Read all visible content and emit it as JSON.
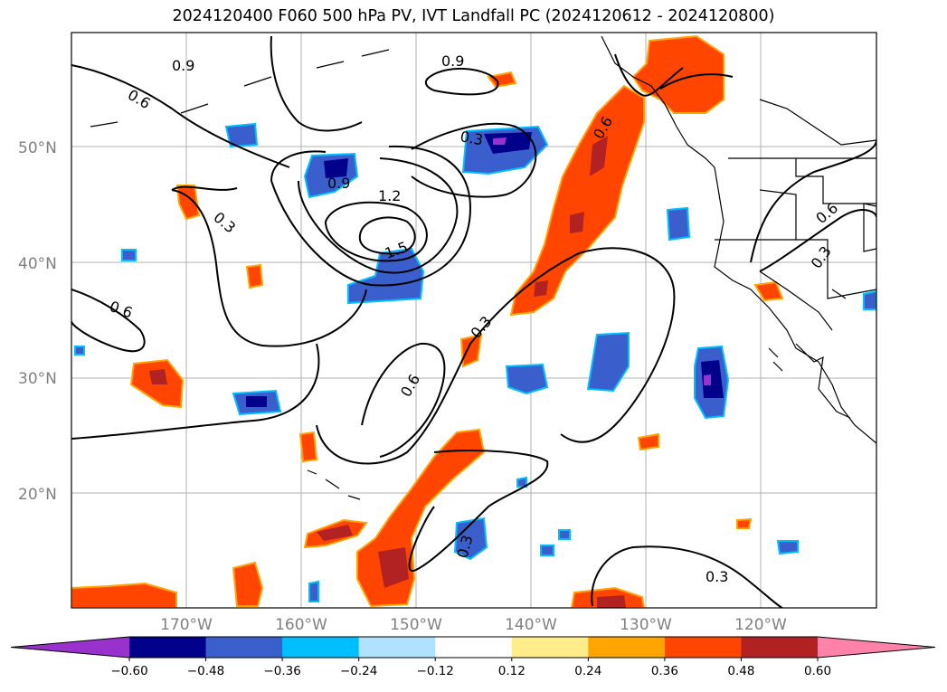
{
  "title": "2024120400 F060 500 hPa PV, IVT Landfall PC (2024120612 - 2024120800)",
  "lat_labels": [
    "50°N",
    "40°N",
    "30°N",
    "20°N"
  ],
  "lon_labels": [
    "170°W",
    "160°W",
    "150°W",
    "140°W",
    "130°W",
    "120°W"
  ],
  "colorbar": {
    "colors": [
      "#9932CC",
      "#00008B",
      "#3A5FCD",
      "#00BFFF",
      "#B0E2FF",
      "#FFFFFF",
      "#FFEC8B",
      "#FFA500",
      "#FF4500",
      "#B22222",
      "#FF82AB"
    ],
    "tick_labels": [
      "−0.60",
      "−0.48",
      "−0.36",
      "−0.24",
      "−0.12",
      "0.12",
      "0.24",
      "0.36",
      "0.48",
      "0.60"
    ]
  },
  "contour_labels": [
    {
      "text": "0.9",
      "id": "c09a"
    },
    {
      "text": "0.9",
      "id": "c09b"
    },
    {
      "text": "0.6",
      "id": "c06a"
    },
    {
      "text": "0.3",
      "id": "c03a"
    },
    {
      "text": "0.9",
      "id": "c09c"
    },
    {
      "text": "1.2",
      "id": "c12"
    },
    {
      "text": "1.5",
      "id": "c15"
    },
    {
      "text": "0.3",
      "id": "c03b"
    },
    {
      "text": "0.6",
      "id": "c06b"
    },
    {
      "text": "0.6",
      "id": "c06c"
    },
    {
      "text": "0.3",
      "id": "c03c"
    },
    {
      "text": "0.6",
      "id": "c06d"
    },
    {
      "text": "0.6",
      "id": "c06e"
    },
    {
      "text": "0.3",
      "id": "c03d"
    },
    {
      "text": "0.3",
      "id": "c03e"
    },
    {
      "text": "0.3",
      "id": "c03f"
    }
  ]
}
